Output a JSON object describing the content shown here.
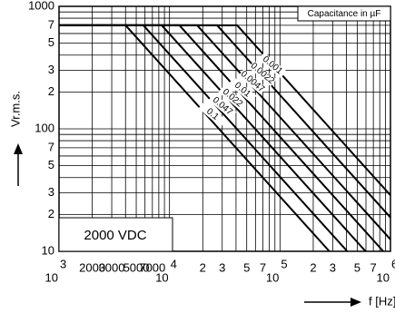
{
  "chart_data": {
    "type": "line",
    "log_x": true,
    "log_y": true,
    "grid": true,
    "xlabel": "f [Hz]",
    "ylabel": "Vr.m.s.",
    "legend_title": "Capacitance in µF",
    "annotation": "2000 VDC",
    "xlim": [
      1000,
      1000000
    ],
    "ylim": [
      10,
      1000
    ],
    "xticks": [
      {
        "value": 1000,
        "label": "10",
        "sup": "3"
      },
      2000,
      3000,
      5000,
      7000,
      {
        "value": 10000,
        "label": "10",
        "sup": "4"
      },
      {
        "value": 20000,
        "label": "2"
      },
      {
        "value": 30000,
        "label": "3"
      },
      {
        "value": 50000,
        "label": "5"
      },
      {
        "value": 70000,
        "label": "7"
      },
      {
        "value": 100000,
        "label": "10",
        "sup": "5"
      },
      {
        "value": 200000,
        "label": "2"
      },
      {
        "value": 300000,
        "label": "3"
      },
      {
        "value": 500000,
        "label": "5"
      },
      {
        "value": 700000,
        "label": "7"
      },
      {
        "value": 1000000,
        "label": "10",
        "sup": "6"
      }
    ],
    "x_minor_ticks": [
      4000,
      6000,
      8000,
      9000,
      40000,
      60000,
      80000,
      90000,
      400000,
      600000,
      800000,
      900000
    ],
    "yticks": [
      1000,
      {
        "value": 700,
        "label": "7"
      },
      {
        "value": 500,
        "label": "5"
      },
      {
        "value": 300,
        "label": "3"
      },
      {
        "value": 200,
        "label": "2"
      },
      100,
      {
        "value": 70,
        "label": "7"
      },
      {
        "value": 50,
        "label": "5"
      },
      {
        "value": 30,
        "label": "3"
      },
      {
        "value": 20,
        "label": "2"
      },
      10
    ],
    "y_minor_ticks": [
      400,
      600,
      800,
      900,
      40,
      60,
      80,
      90
    ],
    "series": [
      {
        "name": "0.001",
        "color": "#000000",
        "x": [
          1000,
          41000,
          1000000
        ],
        "values": [
          700,
          700,
          28.7
        ]
      },
      {
        "name": "0.0022",
        "color": "#000000",
        "x": [
          1000,
          27000,
          1000000
        ],
        "values": [
          700,
          700,
          18.9
        ]
      },
      {
        "name": "0.0047",
        "color": "#000000",
        "x": [
          1000,
          17800,
          1000000
        ],
        "values": [
          700,
          700,
          12.5
        ]
      },
      {
        "name": "0.01",
        "color": "#000000",
        "x": [
          1000,
          12300,
          861000
        ],
        "values": [
          700,
          700,
          10
        ]
      },
      {
        "name": "0.022",
        "color": "#000000",
        "x": [
          1000,
          8500,
          595000
        ],
        "values": [
          700,
          700,
          10
        ]
      },
      {
        "name": "0.047",
        "color": "#000000",
        "x": [
          1000,
          5800,
          406000
        ],
        "values": [
          700,
          700,
          10
        ]
      },
      {
        "name": "0.1",
        "color": "#000000",
        "x": [
          1000,
          4000,
          280000
        ],
        "values": [
          700,
          700,
          10
        ]
      }
    ]
  }
}
